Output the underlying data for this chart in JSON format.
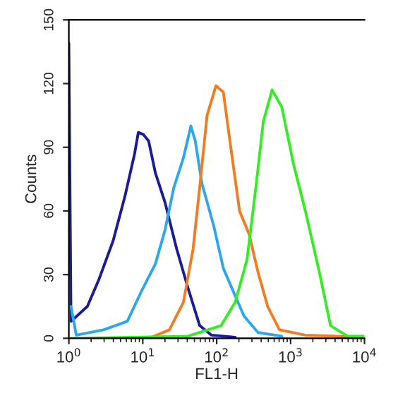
{
  "chart_data": {
    "type": "line",
    "xlabel": "FL1-H",
    "ylabel": "Counts",
    "log": "x",
    "grid": false,
    "legend": false,
    "marker": "none",
    "line_style": "solid",
    "xlim": [
      1,
      10000
    ],
    "xticks": [
      {
        "value": 1,
        "label": "10$^{0}$"
      },
      {
        "value": 10,
        "label": "10$^{1}$"
      },
      {
        "value": 100,
        "label": "10$^{2}$"
      },
      {
        "value": 1000,
        "label": "10$^{3}$"
      },
      {
        "value": 10000,
        "label": "10$^{4}$"
      }
    ],
    "ylim": [
      0,
      150
    ],
    "yticks": [
      0,
      30,
      60,
      90,
      120,
      150
    ],
    "series": [
      {
        "color": "#1a1a9e",
        "x": [
          1,
          1.07,
          1.78,
          2.57,
          3.98,
          5.75,
          7.76,
          8.71,
          10.2,
          12.0,
          14.8,
          20.0,
          28.8,
          40.7,
          58.9,
          85.1,
          178
        ],
        "values": [
          139,
          8,
          15,
          28,
          46,
          67,
          87,
          97,
          96,
          93,
          78,
          64,
          42,
          24,
          6,
          1.5,
          0.5
        ]
      },
      {
        "color": "#2aa7f0",
        "x": [
          1.07,
          1.26,
          2.95,
          6.17,
          9.55,
          14.8,
          20,
          26.3,
          35.5,
          44.7,
          51.3,
          63.1,
          91.2,
          123,
          178,
          234,
          363,
          759
        ],
        "values": [
          15,
          1.5,
          4,
          8,
          22,
          35,
          51,
          71,
          85,
          100,
          93,
          73,
          53,
          33,
          20,
          10.5,
          2.7,
          1
        ]
      },
      {
        "color": "#f57a20",
        "x": [
          12.9,
          22.9,
          35.5,
          47.9,
          58.9,
          74.1,
          97.7,
          123,
          151,
          204,
          275,
          363,
          490,
          708,
          1585,
          6761
        ],
        "values": [
          0.4,
          4,
          17,
          42,
          71,
          105,
          119,
          116,
          93,
          60,
          49,
          31,
          15,
          4,
          1.5,
          0.7
        ]
      },
      {
        "color": "#33ee22",
        "x": [
          1.07,
          40.7,
          115,
          178,
          257,
          339,
          427,
          562,
          759,
          1096,
          1585,
          2455,
          3467,
          5888,
          9772
        ],
        "values": [
          0,
          1,
          6,
          17,
          37,
          71,
          102,
          117,
          109,
          82,
          60,
          31,
          6,
          1,
          1
        ]
      }
    ]
  }
}
